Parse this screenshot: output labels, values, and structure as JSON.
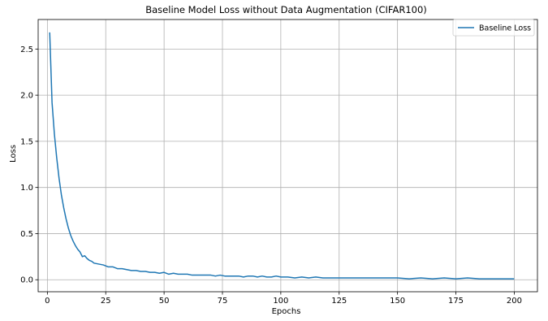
{
  "chart_data": {
    "type": "line",
    "title": "Baseline Model Loss without Data Augmentation (CIFAR100)",
    "xlabel": "Epochs",
    "ylabel": "Loss",
    "xlim": [
      -3.95,
      209.95
    ],
    "ylim": [
      -0.13,
      2.82
    ],
    "xticks": [
      0,
      25,
      50,
      75,
      100,
      125,
      150,
      175,
      200
    ],
    "xtick_labels": [
      "0",
      "25",
      "50",
      "75",
      "100",
      "125",
      "150",
      "175",
      "200"
    ],
    "yticks": [
      0.0,
      0.5,
      1.0,
      1.5,
      2.0,
      2.5
    ],
    "ytick_labels": [
      "0.0",
      "0.5",
      "1.0",
      "1.5",
      "2.0",
      "2.5"
    ],
    "grid": true,
    "legend_position": "top-right",
    "series": [
      {
        "name": "Baseline Loss",
        "color": "#1f77b4",
        "x": [
          1,
          2,
          3,
          4,
          5,
          6,
          7,
          8,
          9,
          10,
          11,
          12,
          13,
          14,
          15,
          16,
          17,
          18,
          19,
          20,
          22,
          24,
          26,
          28,
          30,
          32,
          34,
          36,
          38,
          40,
          42,
          44,
          46,
          48,
          50,
          52,
          54,
          56,
          58,
          60,
          62,
          64,
          66,
          68,
          70,
          72,
          74,
          76,
          78,
          80,
          82,
          84,
          86,
          88,
          90,
          92,
          94,
          96,
          98,
          100,
          103,
          106,
          109,
          112,
          115,
          118,
          121,
          124,
          127,
          130,
          135,
          140,
          145,
          150,
          155,
          160,
          165,
          170,
          175,
          180,
          185,
          190,
          195,
          200
        ],
        "y": [
          2.68,
          1.92,
          1.58,
          1.32,
          1.1,
          0.92,
          0.78,
          0.66,
          0.56,
          0.48,
          0.42,
          0.37,
          0.33,
          0.3,
          0.25,
          0.26,
          0.23,
          0.21,
          0.2,
          0.18,
          0.17,
          0.16,
          0.14,
          0.14,
          0.12,
          0.12,
          0.11,
          0.1,
          0.1,
          0.09,
          0.09,
          0.08,
          0.08,
          0.07,
          0.08,
          0.06,
          0.07,
          0.06,
          0.06,
          0.06,
          0.05,
          0.05,
          0.05,
          0.05,
          0.05,
          0.04,
          0.05,
          0.04,
          0.04,
          0.04,
          0.04,
          0.03,
          0.04,
          0.04,
          0.03,
          0.04,
          0.03,
          0.03,
          0.04,
          0.03,
          0.03,
          0.02,
          0.03,
          0.02,
          0.03,
          0.02,
          0.02,
          0.02,
          0.02,
          0.02,
          0.02,
          0.02,
          0.02,
          0.02,
          0.01,
          0.02,
          0.01,
          0.02,
          0.01,
          0.02,
          0.01,
          0.01,
          0.01,
          0.01
        ]
      }
    ]
  }
}
